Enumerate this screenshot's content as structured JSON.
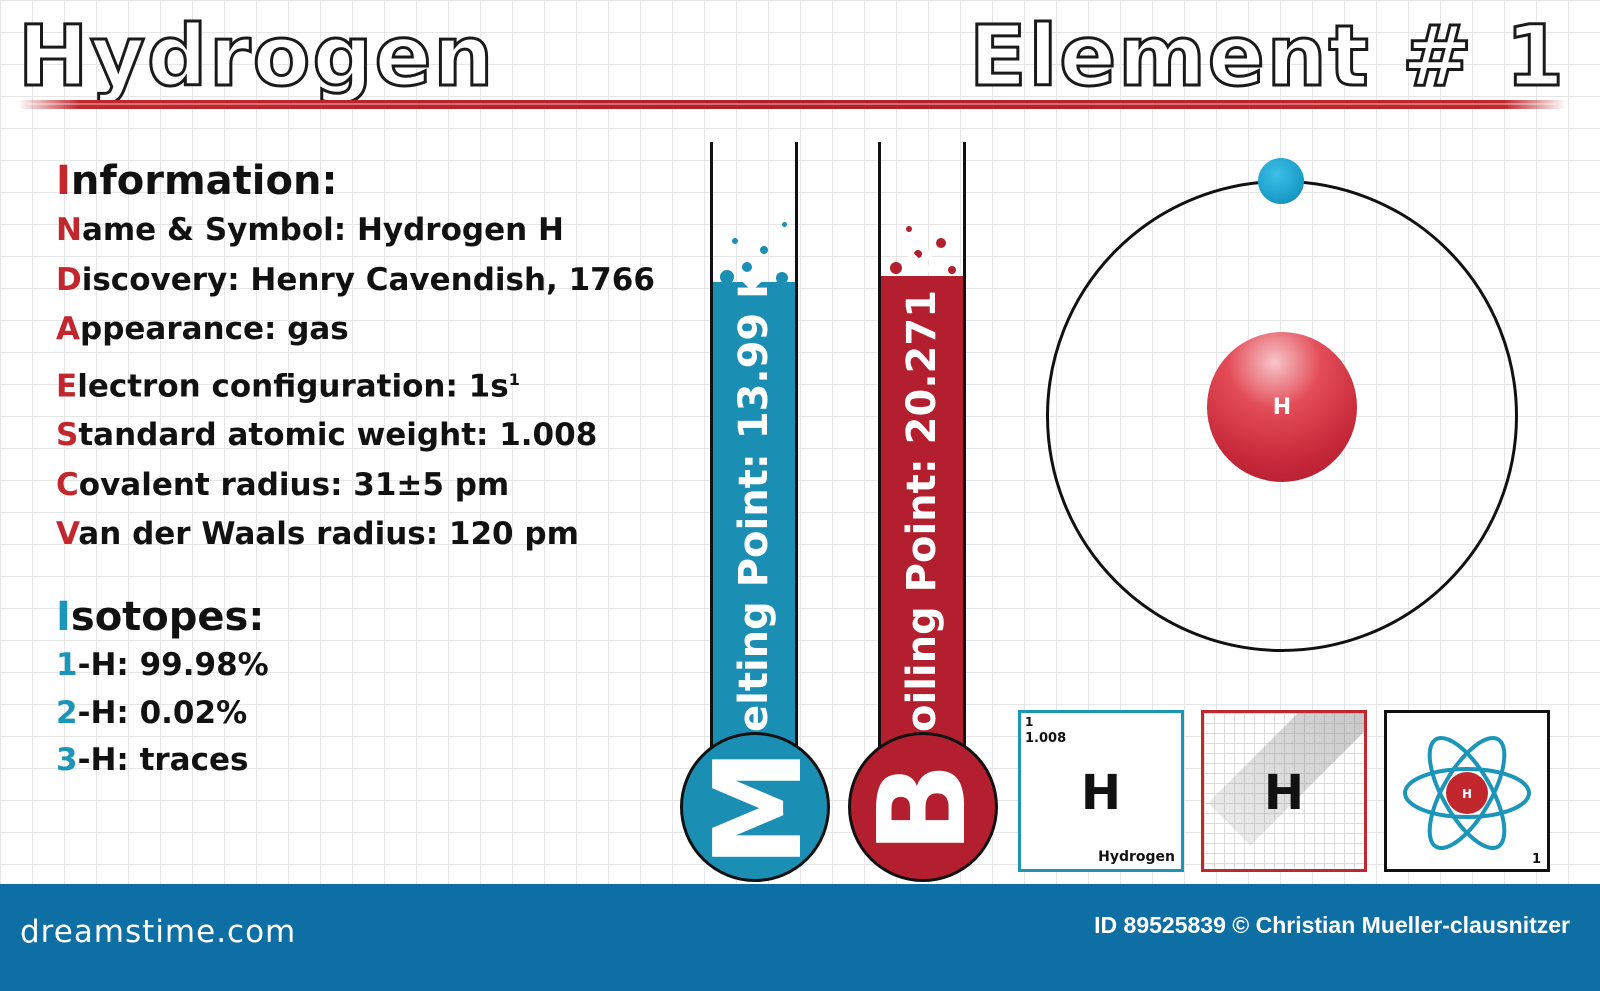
{
  "header": {
    "title": "Hydrogen",
    "element_label": "Element # 1"
  },
  "information": {
    "heading": "Information:",
    "rows": [
      {
        "cap": "N",
        "rest": "ame & Symbol: Hydrogen H"
      },
      {
        "cap": "D",
        "rest": "iscovery: Henry Cavendish, 1766"
      },
      {
        "cap": "A",
        "rest": "ppearance: gas"
      },
      {
        "cap": "E",
        "rest": "lectron configuration: 1s",
        "sup": "1"
      },
      {
        "cap": "S",
        "rest": "tandard atomic weight: 1.008"
      },
      {
        "cap": "C",
        "rest": "ovalent radius: 31±5 pm"
      },
      {
        "cap": "V",
        "rest": "an der Waals radius: 120 pm"
      }
    ]
  },
  "isotopes": {
    "heading": "Isotopes:",
    "rows": [
      {
        "cap": "1",
        "rest": "-H: 99.98%"
      },
      {
        "cap": "2",
        "rest": "-H: 0.02%"
      },
      {
        "cap": "3",
        "rest": "-H: traces"
      }
    ]
  },
  "thermometers": {
    "melting": {
      "big_letter": "M",
      "label": "elting Point: 13.99 K",
      "color": "#1b8fb3"
    },
    "boiling": {
      "big_letter": "B",
      "label": "oiling Point: 20.271 K",
      "color": "#b31f2e"
    }
  },
  "atom": {
    "nucleus_symbol": "H"
  },
  "cards": {
    "card1": {
      "number": "1",
      "weight": "1.008",
      "symbol": "H",
      "name": "Hydrogen"
    },
    "card2": {
      "symbol": "H"
    },
    "card3": {
      "nucleus_symbol": "H",
      "number": "1"
    }
  },
  "colors": {
    "accent_red": "#c1272d",
    "accent_blue": "#1b95b8",
    "footer": "#0d6fa3"
  },
  "footer": {
    "logo": "dreamstime.com",
    "credit": "ID 89525839 © Christian Mueller-clausnitzer"
  }
}
